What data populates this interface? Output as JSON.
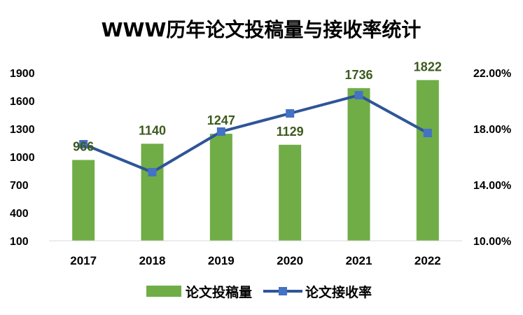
{
  "chart_data": {
    "type": "bar",
    "title": "WWW历年论文投稿量与接收率统计",
    "categories": [
      "2017",
      "2018",
      "2019",
      "2020",
      "2021",
      "2022"
    ],
    "series": [
      {
        "name": "论文投稿量",
        "type": "bar",
        "axis": "left",
        "color": "#70ad47",
        "values": [
          966,
          1140,
          1247,
          1129,
          1736,
          1822
        ]
      },
      {
        "name": "论文接收率",
        "type": "line",
        "axis": "right",
        "color": "#2f5597",
        "values": [
          16.9,
          14.9,
          17.8,
          19.1,
          20.4,
          17.7
        ]
      }
    ],
    "y_left": {
      "range": [
        100,
        1900
      ],
      "ticks": [
        "100",
        "400",
        "700",
        "1000",
        "1300",
        "1600",
        "1900"
      ]
    },
    "y_right": {
      "range": [
        10,
        22
      ],
      "ticks": [
        "10.00%",
        "14.00%",
        "18.00%",
        "22.00%"
      ]
    },
    "data_labels": [
      "966",
      "1140",
      "1247",
      "1129",
      "1736",
      "1822"
    ],
    "legend": {
      "position": "bottom",
      "items": [
        "论文投稿量",
        "论文接收率"
      ]
    },
    "grid": false
  }
}
